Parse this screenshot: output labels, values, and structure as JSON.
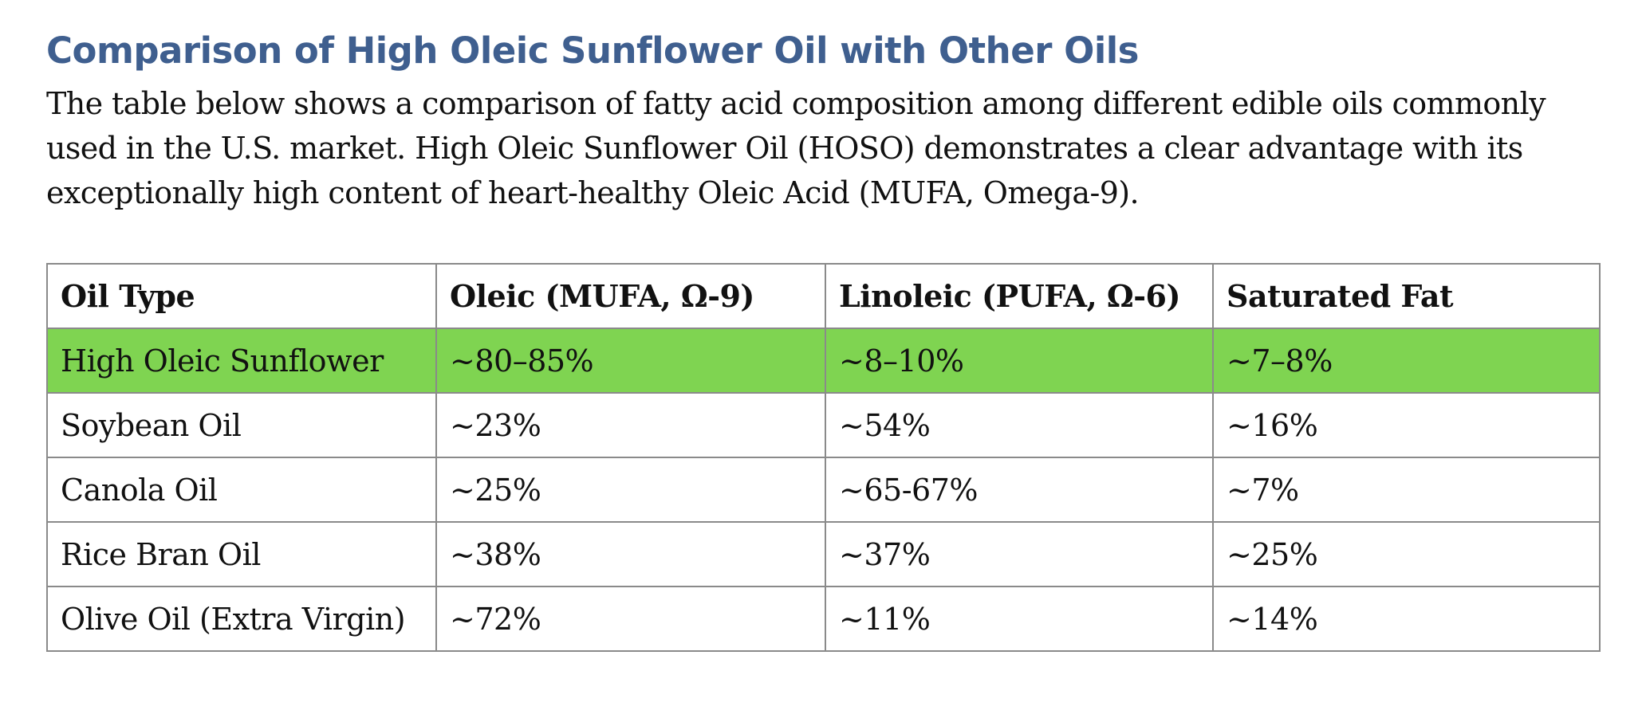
{
  "document": {
    "title": "Comparison of High Oleic Sunflower Oil with Other Oils",
    "intro": "The table below shows a comparison of fatty acid composition among different edible oils commonly used in the U.S. market. High Oleic Sunflower Oil (HOSO) demonstrates a clear advantage with its exceptionally high content of heart-healthy Oleic Acid (MUFA, Omega-9)."
  },
  "table": {
    "headers": [
      "Oil Type",
      "Oleic (MUFA, Ω-9)",
      "Linoleic (PUFA, Ω-6)",
      "Saturated Fat"
    ],
    "highlight_color": "#7fd451",
    "rows": [
      {
        "oil": "High Oleic Sunflower",
        "oleic": "~80–85%",
        "linoleic": "~8–10%",
        "saturated": "~7–8%",
        "highlighted": true
      },
      {
        "oil": "Soybean Oil",
        "oleic": "~23%",
        "linoleic": "~54%",
        "saturated": "~16%",
        "highlighted": false
      },
      {
        "oil": "Canola Oil",
        "oleic": "~25%",
        "linoleic": "~65-67%",
        "saturated": "~7%",
        "highlighted": false
      },
      {
        "oil": "Rice Bran Oil",
        "oleic": "~38%",
        "linoleic": "~37%",
        "saturated": "~25%",
        "highlighted": false
      },
      {
        "oil": "Olive Oil (Extra Virgin)",
        "oleic": "~72%",
        "linoleic": "~11%",
        "saturated": "~14%",
        "highlighted": false
      }
    ]
  }
}
